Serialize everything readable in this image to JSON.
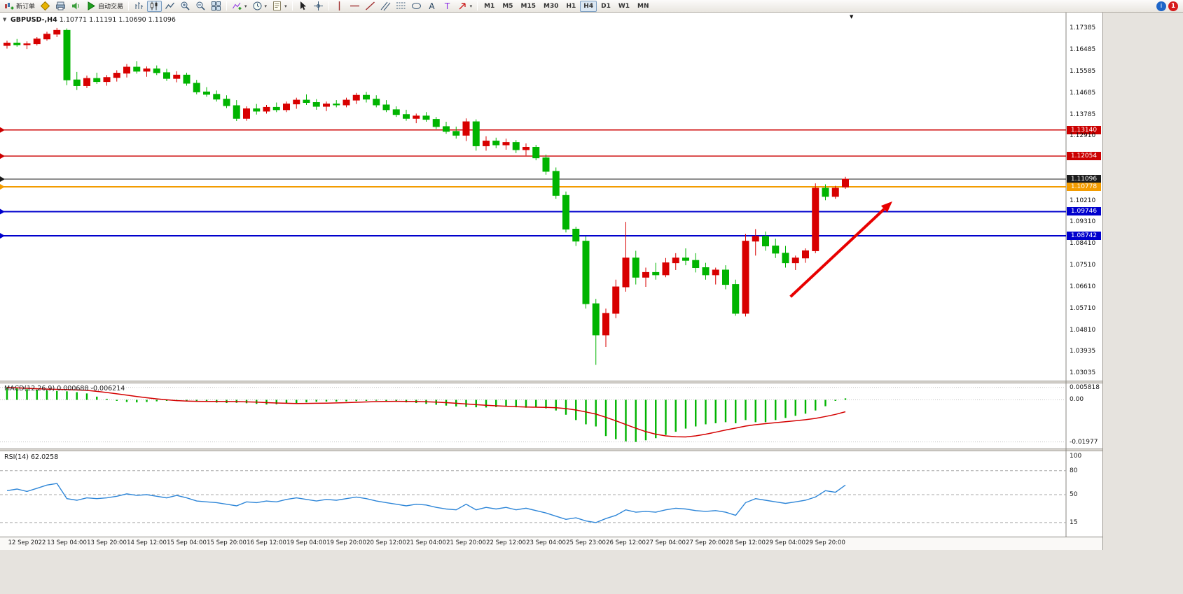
{
  "toolbar": {
    "new_order_label": "新订单",
    "autotrading_label": "自动交易",
    "timeframes": [
      "M1",
      "M5",
      "M15",
      "M30",
      "H1",
      "H4",
      "D1",
      "W1",
      "MN"
    ],
    "active_timeframe": "H4",
    "notification_count": "1",
    "community_glyph": "i"
  },
  "icons": {
    "dropdown_caret": "▾",
    "collapse_triangle": "▼",
    "shift_marker": "▼"
  },
  "chart": {
    "symbol_period": "GBPUSD-,H4",
    "ohlc": "1.10771 1.11191 1.10690 1.11096"
  },
  "macd_panel": {
    "label": "MACD(12,26,9)",
    "main_value": "0.000688",
    "signal_value": "-0.006214",
    "axis_labels": [
      "0.005818",
      "0.00",
      "-0.01977"
    ]
  },
  "rsi_panel": {
    "label": "RSI(14)",
    "value": "62.0258",
    "axis_labels": [
      "100",
      "80",
      "50",
      "15"
    ]
  },
  "price_axis": {
    "labels": [
      "1.17385",
      "1.16485",
      "1.15585",
      "1.14685",
      "1.13785",
      "1.12910",
      "1.10210",
      "1.09310",
      "1.08410",
      "1.07510",
      "1.06610",
      "1.05710",
      "1.04810",
      "1.03935",
      "1.03035"
    ]
  },
  "time_axis": {
    "labels": [
      "12 Sep 2022",
      "13 Sep 04:00",
      "13 Sep 20:00",
      "14 Sep 12:00",
      "15 Sep 04:00",
      "15 Sep 20:00",
      "16 Sep 12:00",
      "19 Sep 04:00",
      "19 Sep 20:00",
      "20 Sep 12:00",
      "21 Sep 04:00",
      "21 Sep 20:00",
      "22 Sep 12:00",
      "23 Sep 04:00",
      "25 Sep 23:00",
      "26 Sep 12:00",
      "27 Sep 04:00",
      "27 Sep 20:00",
      "28 Sep 12:00",
      "29 Sep 04:00",
      "29 Sep 20:00"
    ]
  },
  "chart_data": {
    "type": "candlestick",
    "symbol": "GBPUSD-",
    "timeframe": "H4",
    "title": "GBPUSD-,H4 1.10771 1.11191 1.10690 1.11096",
    "price_range": [
      1.029,
      1.179
    ],
    "colors": {
      "bullish": "#d80000",
      "bearish": "#00b400",
      "macd_histogram": "#00b400",
      "macd_signal": "#d40000",
      "rsi_line": "#2e86d8",
      "arrow": "#e80000",
      "level_red": "#cc0000",
      "level_blue": "#0000cd",
      "level_orange": "#f39c00",
      "current_price": "#1c1c1c"
    },
    "candles": [
      [
        1.1665,
        1.1685,
        1.1652,
        1.1675
      ],
      [
        1.1675,
        1.1692,
        1.166,
        1.1668
      ],
      [
        1.1668,
        1.1682,
        1.165,
        1.1672
      ],
      [
        1.1672,
        1.17,
        1.1665,
        1.1692
      ],
      [
        1.1692,
        1.1722,
        1.1685,
        1.1712
      ],
      [
        1.1712,
        1.1738,
        1.17,
        1.1728
      ],
      [
        1.1728,
        1.1736,
        1.15,
        1.1522
      ],
      [
        1.1522,
        1.1555,
        1.148,
        1.1498
      ],
      [
        1.1498,
        1.154,
        1.1488,
        1.1528
      ],
      [
        1.1528,
        1.1552,
        1.1505,
        1.1515
      ],
      [
        1.1515,
        1.1542,
        1.1498,
        1.1532
      ],
      [
        1.1532,
        1.1562,
        1.1515,
        1.155
      ],
      [
        1.155,
        1.1588,
        1.1532,
        1.1575
      ],
      [
        1.1575,
        1.16,
        1.1548,
        1.1558
      ],
      [
        1.1558,
        1.1578,
        1.1535,
        1.1568
      ],
      [
        1.1568,
        1.1582,
        1.1542,
        1.1552
      ],
      [
        1.1552,
        1.1568,
        1.1518,
        1.1528
      ],
      [
        1.1528,
        1.1558,
        1.1512,
        1.1542
      ],
      [
        1.1542,
        1.1552,
        1.1498,
        1.1508
      ],
      [
        1.1508,
        1.1522,
        1.1462,
        1.1472
      ],
      [
        1.1472,
        1.1492,
        1.1452,
        1.1462
      ],
      [
        1.1462,
        1.1478,
        1.1432,
        1.1442
      ],
      [
        1.1442,
        1.1458,
        1.1405,
        1.1415
      ],
      [
        1.1415,
        1.1438,
        1.1351,
        1.1362
      ],
      [
        1.1362,
        1.1412,
        1.1352,
        1.1402
      ],
      [
        1.1402,
        1.1422,
        1.1378,
        1.1392
      ],
      [
        1.1392,
        1.1418,
        1.1382,
        1.1408
      ],
      [
        1.1408,
        1.1428,
        1.1388,
        1.1398
      ],
      [
        1.1398,
        1.1432,
        1.1388,
        1.1422
      ],
      [
        1.1422,
        1.1448,
        1.1402,
        1.1438
      ],
      [
        1.1438,
        1.1462,
        1.1418,
        1.1428
      ],
      [
        1.1428,
        1.1442,
        1.1398,
        1.1412
      ],
      [
        1.1412,
        1.1432,
        1.1392,
        1.1422
      ],
      [
        1.1422,
        1.1438,
        1.1408,
        1.1418
      ],
      [
        1.1418,
        1.1448,
        1.1408,
        1.1438
      ],
      [
        1.1438,
        1.1468,
        1.1422,
        1.1458
      ],
      [
        1.1458,
        1.1472,
        1.1428,
        1.1442
      ],
      [
        1.1442,
        1.1458,
        1.1408,
        1.1418
      ],
      [
        1.1418,
        1.1438,
        1.1388,
        1.1398
      ],
      [
        1.1398,
        1.1412,
        1.1368,
        1.1378
      ],
      [
        1.1378,
        1.1398,
        1.1352,
        1.1362
      ],
      [
        1.1362,
        1.1382,
        1.1342,
        1.1372
      ],
      [
        1.1372,
        1.1388,
        1.1348,
        1.1358
      ],
      [
        1.1358,
        1.1368,
        1.1318,
        1.1328
      ],
      [
        1.1328,
        1.1348,
        1.1298,
        1.1308
      ],
      [
        1.1308,
        1.1328,
        1.1278,
        1.1292
      ],
      [
        1.1292,
        1.1362,
        1.1268,
        1.1348
      ],
      [
        1.1348,
        1.1358,
        1.1228,
        1.1248
      ],
      [
        1.1248,
        1.1288,
        1.1228,
        1.1268
      ],
      [
        1.1268,
        1.1282,
        1.1238,
        1.1252
      ],
      [
        1.1252,
        1.1278,
        1.1232,
        1.1262
      ],
      [
        1.1262,
        1.1272,
        1.1218,
        1.1232
      ],
      [
        1.1232,
        1.1258,
        1.1208,
        1.1242
      ],
      [
        1.1242,
        1.1252,
        1.1188,
        1.1198
      ],
      [
        1.1198,
        1.1212,
        1.1128,
        1.1142
      ],
      [
        1.1142,
        1.1158,
        1.1028,
        1.1042
      ],
      [
        1.1042,
        1.1058,
        1.0888,
        1.0902
      ],
      [
        1.0902,
        1.0912,
        1.0832,
        1.0852
      ],
      [
        1.0852,
        1.0872,
        1.0572,
        1.0592
      ],
      [
        1.0592,
        1.0612,
        1.0338,
        1.0462
      ],
      [
        1.0462,
        1.0572,
        1.0412,
        1.0552
      ],
      [
        1.0552,
        1.0692,
        1.0532,
        1.0662
      ],
      [
        1.0662,
        1.0932,
        1.0642,
        1.0782
      ],
      [
        1.0782,
        1.0812,
        1.0672,
        1.0702
      ],
      [
        1.0702,
        1.0742,
        1.0662,
        1.0722
      ],
      [
        1.0722,
        1.0762,
        1.0692,
        1.0712
      ],
      [
        1.0712,
        1.0782,
        1.0702,
        1.0762
      ],
      [
        1.0762,
        1.0802,
        1.0732,
        1.0782
      ],
      [
        1.0782,
        1.0822,
        1.0752,
        1.0772
      ],
      [
        1.0772,
        1.0802,
        1.0722,
        1.0742
      ],
      [
        1.0742,
        1.0762,
        1.0692,
        1.0712
      ],
      [
        1.0712,
        1.0742,
        1.0672,
        1.0732
      ],
      [
        1.0732,
        1.0752,
        1.0652,
        1.0672
      ],
      [
        1.0672,
        1.0692,
        1.0542,
        1.0552
      ],
      [
        1.0552,
        1.0882,
        1.0539,
        1.0852
      ],
      [
        1.0852,
        1.0902,
        1.0792,
        1.0872
      ],
      [
        1.0872,
        1.0892,
        1.0812,
        1.0832
      ],
      [
        1.0832,
        1.0862,
        1.0782,
        1.0802
      ],
      [
        1.0802,
        1.0832,
        1.0742,
        1.0762
      ],
      [
        1.0762,
        1.0792,
        1.0732,
        1.0782
      ],
      [
        1.0782,
        1.0822,
        1.0762,
        1.0812
      ],
      [
        1.0812,
        1.1092,
        1.0802,
        1.1072
      ],
      [
        1.1072,
        1.1088,
        1.1022,
        1.1038
      ],
      [
        1.1038,
        1.1082,
        1.1028,
        1.1072
      ],
      [
        1.10771,
        1.11191,
        1.1069,
        1.11096
      ]
    ],
    "horizontal_lines": [
      {
        "price": 1.1314,
        "label": "1.13140",
        "color": "#cc0000",
        "width": 1.4
      },
      {
        "price": 1.12054,
        "label": "1.12054",
        "color": "#cc0000",
        "width": 1.4
      },
      {
        "price": 1.11096,
        "label": "1.11096",
        "color": "#1c1c1c",
        "width": 1
      },
      {
        "price": 1.10778,
        "label": "1.10778",
        "color": "#f39c00",
        "width": 2
      },
      {
        "price": 1.09746,
        "label": "1.09746",
        "color": "#0000cd",
        "width": 2
      },
      {
        "price": 1.08742,
        "label": "1.08742",
        "color": "#0000cd",
        "width": 2
      }
    ],
    "macd": {
      "name": "MACD(12,26,9)",
      "main_current": 0.000688,
      "signal_current": -0.006214,
      "range": [
        -0.01977,
        0.005818
      ],
      "histogram": [
        0.00582,
        0.0054,
        0.005,
        0.0047,
        0.0044,
        0.0042,
        0.004,
        0.0036,
        0.003,
        0.0015,
        0.0005,
        -0.0005,
        -0.001,
        -0.0012,
        -0.001,
        -0.0007,
        -0.0005,
        -0.0003,
        -0.0004,
        -0.0006,
        -0.0009,
        -0.0013,
        -0.0015,
        -0.0014,
        -0.0016,
        -0.0019,
        -0.0022,
        -0.0021,
        -0.0018,
        -0.0015,
        -0.0012,
        -0.0009,
        -0.0008,
        -0.0008,
        -0.0007,
        -0.0006,
        -0.0005,
        -0.0004,
        -0.0006,
        -0.0009,
        -0.0012,
        -0.0015,
        -0.0019,
        -0.0023,
        -0.0027,
        -0.0031,
        -0.0033,
        -0.0035,
        -0.0036,
        -0.0034,
        -0.0033,
        -0.0035,
        -0.0037,
        -0.0036,
        -0.004,
        -0.005,
        -0.007,
        -0.0095,
        -0.0115,
        -0.0125,
        -0.017,
        -0.0185,
        -0.0195,
        -0.01977,
        -0.019,
        -0.018,
        -0.0165,
        -0.015,
        -0.0135,
        -0.0125,
        -0.0115,
        -0.011,
        -0.0105,
        -0.011,
        -0.0095,
        -0.0105,
        -0.0105,
        -0.0095,
        -0.0085,
        -0.0075,
        -0.0065,
        -0.005,
        -0.003,
        -0.0005,
        0.000688
      ]
    },
    "rsi": {
      "name": "RSI(14)",
      "current": 62.0258,
      "levels": [
        80,
        50,
        15
      ],
      "range": [
        0,
        100
      ],
      "values": [
        55,
        57,
        54,
        58,
        62,
        64,
        45,
        43,
        46,
        45,
        46,
        48,
        51,
        49,
        50,
        48,
        46,
        49,
        46,
        42,
        41,
        40,
        38,
        36,
        41,
        40,
        42,
        41,
        44,
        46,
        44,
        42,
        44,
        43,
        45,
        47,
        45,
        42,
        40,
        38,
        36,
        38,
        37,
        34,
        32,
        31,
        38,
        31,
        34,
        32,
        34,
        31,
        33,
        30,
        27,
        23,
        19,
        21,
        17,
        15,
        20,
        24,
        31,
        28,
        29,
        28,
        31,
        33,
        32,
        30,
        29,
        30,
        28,
        24,
        40,
        45,
        43,
        41,
        39,
        41,
        43,
        47,
        55,
        53,
        62.0258
      ]
    },
    "arrow": {
      "from_candle": 78.5,
      "from_price": 1.0621,
      "to_candle": 88.7,
      "to_price": 1.1017
    }
  }
}
